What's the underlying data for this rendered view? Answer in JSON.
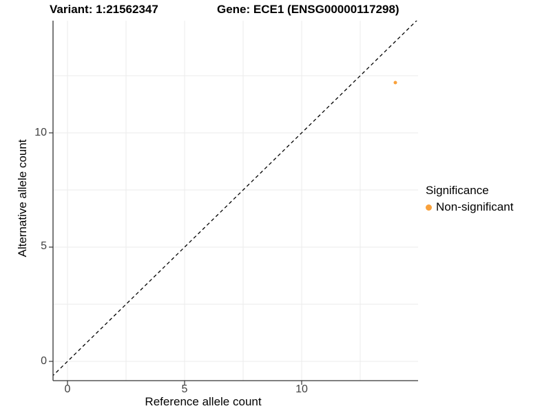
{
  "chart_data": {
    "type": "scatter",
    "titles": {
      "left": "Variant: 1:21562347",
      "right": "Gene: ECE1 (ENSG00000117298)"
    },
    "xlabel": "Reference allele count",
    "ylabel": "Alternative allele count",
    "x_ticks": [
      0,
      5,
      10
    ],
    "y_ticks": [
      0,
      5,
      10
    ],
    "xlim": [
      -0.62,
      14.97
    ],
    "ylim": [
      -0.84,
      14.91
    ],
    "grid": {
      "show": true,
      "interval": 2.5,
      "max": 12.5,
      "color": "#ebebeb"
    },
    "identity_line": {
      "slope": 1,
      "intercept": 0,
      "style": "dashed",
      "color": "#000000"
    },
    "series": [
      {
        "name": "Non-significant",
        "color": "#F9A13B",
        "points": [
          {
            "x": 14,
            "y": 12.2
          }
        ]
      }
    ],
    "legend": {
      "title": "Significance",
      "position": "right",
      "entries": [
        {
          "label": "Non-significant",
          "color": "#F9A13B"
        }
      ]
    },
    "axis_color": "#333333",
    "tick_label_color": "#404040"
  }
}
